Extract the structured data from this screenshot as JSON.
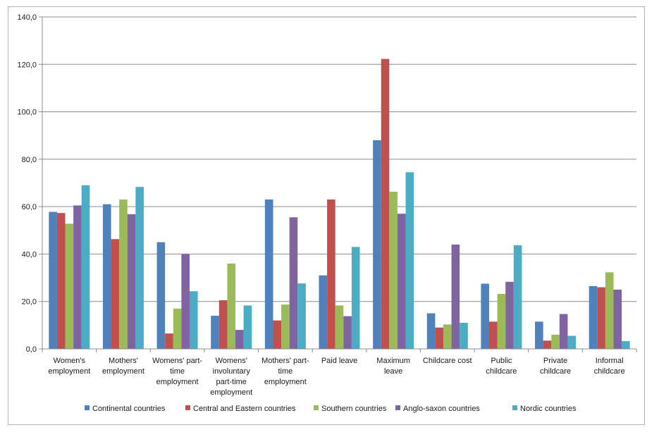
{
  "chart_data": {
    "type": "bar",
    "title": "",
    "xlabel": "",
    "ylabel": "",
    "ylim": [
      0,
      140
    ],
    "ytick_step": 20,
    "ytick_labels": [
      "0,0",
      "20,0",
      "40,0",
      "60,0",
      "80,0",
      "100,0",
      "120,0",
      "140,0"
    ],
    "grid": true,
    "legend_position": "bottom",
    "categories": [
      [
        "Women's",
        "employment"
      ],
      [
        "Mothers'",
        "employment"
      ],
      [
        "Womens' part-",
        "time",
        "employment"
      ],
      [
        "Womens'",
        "involuntary",
        "part-time",
        "employment"
      ],
      [
        "Mothers' part-",
        "time",
        "employment"
      ],
      [
        "Paid leave"
      ],
      [
        "Maximum",
        "leave"
      ],
      [
        "Childcare cost"
      ],
      [
        "Public",
        "childcare"
      ],
      [
        "Private",
        "childcare"
      ],
      [
        "Informal",
        "childcare"
      ]
    ],
    "series": [
      {
        "name": "Continental countries",
        "color": "#4f81bd",
        "values": [
          57.8,
          61.0,
          45.0,
          14.0,
          63.0,
          31.0,
          88.0,
          15.0,
          27.5,
          11.5,
          26.5
        ]
      },
      {
        "name": "Central and Eastern countries",
        "color": "#c0504d",
        "values": [
          57.3,
          46.3,
          6.5,
          20.5,
          12.0,
          63.0,
          122.3,
          9.0,
          11.5,
          3.5,
          26.0
        ]
      },
      {
        "name": "Southern countries",
        "color": "#9bbb59",
        "values": [
          52.8,
          63.0,
          17.0,
          36.0,
          18.7,
          18.3,
          66.3,
          10.3,
          23.2,
          6.0,
          32.3
        ]
      },
      {
        "name": "Anglo-saxon countries",
        "color": "#8064a2",
        "values": [
          60.5,
          56.8,
          40.0,
          8.0,
          55.5,
          13.8,
          57.0,
          44.0,
          28.3,
          14.7,
          25.0
        ]
      },
      {
        "name": "Nordic countries",
        "color": "#4bacc6",
        "values": [
          69.0,
          68.3,
          24.3,
          18.3,
          27.6,
          43.0,
          74.5,
          11.0,
          43.7,
          5.5,
          3.3
        ]
      }
    ]
  }
}
